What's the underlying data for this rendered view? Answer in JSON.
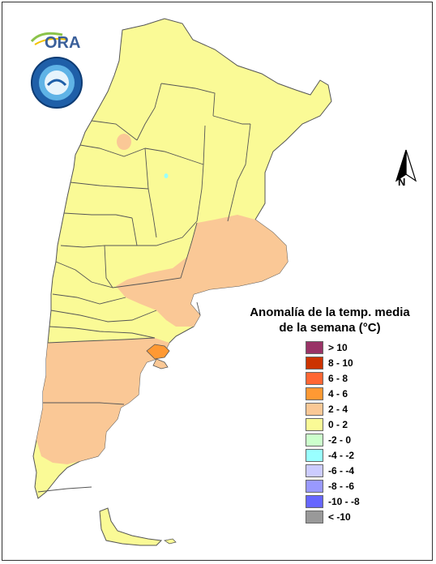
{
  "legend": {
    "title_line1": "Anomalía de la temp. media",
    "title_line2": "de la semana (°C)",
    "items": [
      {
        "label": "> 10",
        "color": "#993366"
      },
      {
        "label": "8 - 10",
        "color": "#cc3300"
      },
      {
        "label": "6 - 8",
        "color": "#ff6633"
      },
      {
        "label": "4 - 6",
        "color": "#ff9933"
      },
      {
        "label": "2 - 4",
        "color": "#fac896"
      },
      {
        "label": "0 - 2",
        "color": "#fafa96"
      },
      {
        "label": "-2 - 0",
        "color": "#ccffcc"
      },
      {
        "label": "-4 - -2",
        "color": "#99ffff"
      },
      {
        "label": "-6 - -4",
        "color": "#ccccff"
      },
      {
        "label": "-8 - -6",
        "color": "#9999ff"
      },
      {
        "label": "-10 - -8",
        "color": "#6666ff"
      },
      {
        "label": "< -10",
        "color": "#999999"
      }
    ]
  },
  "north_label": "N",
  "logo_ora_text": "ORA",
  "colors": {
    "base_anomaly": "#fafa96",
    "warm_anomaly": "#fac896",
    "hot_spot": "#ff9933",
    "cool_spot": "#99ffff",
    "border": "#555555"
  }
}
